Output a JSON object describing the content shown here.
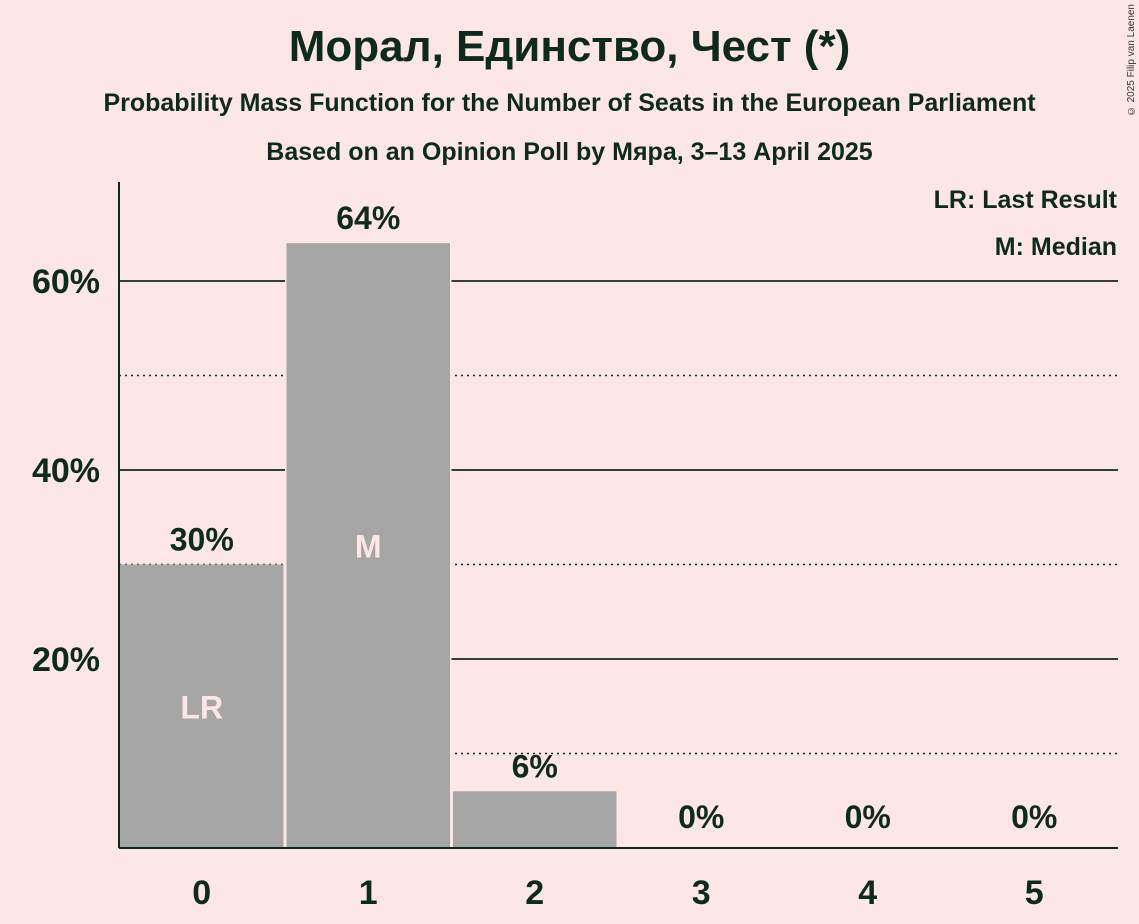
{
  "header": {
    "title": "Морал, Единство, Чест (*)",
    "subtitle": "Probability Mass Function for the Number of Seats in the European Parliament",
    "subtitle2": "Based on an Opinion Poll by Мяра, 3–13 April 2025",
    "copyright": "© 2025 Filip van Laenen"
  },
  "legend": {
    "last_result": "LR: Last Result",
    "median": "M: Median"
  },
  "colors": {
    "background": "#fde6e6",
    "bar": "#a6a6a6",
    "text": "#0e2a1f",
    "bar_label": "#fde6e6"
  },
  "chart_data": {
    "type": "bar",
    "categories": [
      "0",
      "1",
      "2",
      "3",
      "4",
      "5"
    ],
    "values": [
      30,
      64,
      6,
      0,
      0,
      0
    ],
    "value_labels": [
      "30%",
      "64%",
      "6%",
      "0%",
      "0%",
      "0%"
    ],
    "bar_annotations": [
      "LR",
      "M",
      "",
      "",
      "",
      ""
    ],
    "ylim": [
      0,
      70
    ],
    "yticks": [
      20,
      40,
      60
    ],
    "ytick_labels": [
      "20%",
      "40%",
      "60%"
    ],
    "minor_gridlines": [
      10,
      30,
      50
    ],
    "title": "Морал, Единство, Чест (*)",
    "xlabel": "",
    "ylabel": "",
    "grid": true,
    "legend_position": "top-right"
  }
}
